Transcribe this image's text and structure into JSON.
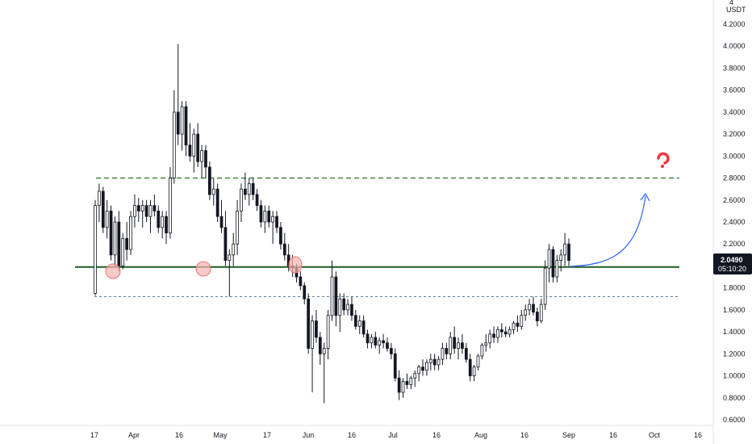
{
  "chart_data": {
    "type": "candlestick",
    "currency": "USDT",
    "header_value": "4",
    "x_tick_labels": [
      "17",
      "Apr",
      "16",
      "May",
      "17",
      "Jun",
      "16",
      "Jul",
      "16",
      "Aug",
      "16",
      "Sep",
      "16",
      "Oct",
      "16"
    ],
    "y_tick_labels": [
      "4.2000",
      "4.0000",
      "3.8000",
      "3.6000",
      "3.4000",
      "3.2000",
      "3.0000",
      "2.8000",
      "2.6000",
      "2.4000",
      "2.2000",
      "2.0000",
      "1.8000",
      "1.6000",
      "1.4000",
      "1.2000",
      "1.0000",
      "0.8000",
      "0.6000"
    ],
    "ylim": [
      0.56,
      4.28
    ],
    "current_price": "2.0490",
    "countdown": "05:10:20",
    "levels": {
      "resistance_dashed": 2.8,
      "support_solid": 1.99,
      "support_dotted": 1.72
    },
    "candles": [
      [
        1.75,
        2.6,
        1.73,
        2.55
      ],
      [
        2.55,
        2.75,
        2.4,
        2.68
      ],
      [
        2.68,
        2.72,
        2.3,
        2.35
      ],
      [
        2.35,
        2.6,
        2.25,
        2.5
      ],
      [
        2.5,
        2.55,
        2.05,
        2.1
      ],
      [
        2.1,
        2.45,
        2.0,
        2.4
      ],
      [
        2.4,
        2.5,
        1.95,
        2.0
      ],
      [
        2.0,
        2.3,
        1.97,
        2.25
      ],
      [
        2.25,
        2.4,
        2.05,
        2.15
      ],
      [
        2.15,
        2.5,
        2.1,
        2.45
      ],
      [
        2.45,
        2.65,
        2.35,
        2.55
      ],
      [
        2.55,
        2.62,
        2.4,
        2.5
      ],
      [
        2.5,
        2.6,
        2.35,
        2.55
      ],
      [
        2.55,
        2.6,
        2.4,
        2.45
      ],
      [
        2.45,
        2.6,
        2.3,
        2.55
      ],
      [
        2.55,
        2.65,
        2.45,
        2.5
      ],
      [
        2.5,
        2.55,
        2.3,
        2.35
      ],
      [
        2.35,
        2.5,
        2.25,
        2.45
      ],
      [
        2.45,
        2.5,
        2.2,
        2.3
      ],
      [
        2.3,
        2.9,
        2.25,
        2.8
      ],
      [
        2.8,
        3.6,
        2.75,
        3.4
      ],
      [
        3.4,
        4.02,
        3.1,
        3.2
      ],
      [
        3.2,
        3.5,
        3.05,
        3.45
      ],
      [
        3.45,
        3.5,
        3.0,
        3.1
      ],
      [
        3.1,
        3.3,
        2.95,
        3.0
      ],
      [
        3.0,
        3.25,
        2.85,
        3.2
      ],
      [
        3.2,
        3.3,
        2.9,
        2.95
      ],
      [
        2.95,
        3.1,
        2.8,
        3.05
      ],
      [
        3.05,
        3.1,
        2.8,
        2.9
      ],
      [
        2.9,
        2.95,
        2.6,
        2.65
      ],
      [
        2.65,
        2.8,
        2.55,
        2.7
      ],
      [
        2.7,
        2.75,
        2.4,
        2.45
      ],
      [
        2.45,
        2.6,
        2.3,
        2.35
      ],
      [
        2.35,
        2.5,
        2.0,
        2.05
      ],
      [
        2.05,
        2.15,
        1.72,
        2.1
      ],
      [
        2.1,
        2.3,
        2.0,
        2.2
      ],
      [
        2.2,
        2.6,
        2.1,
        2.5
      ],
      [
        2.5,
        2.75,
        2.4,
        2.7
      ],
      [
        2.7,
        2.85,
        2.6,
        2.65
      ],
      [
        2.65,
        2.8,
        2.55,
        2.75
      ],
      [
        2.75,
        2.8,
        2.6,
        2.65
      ],
      [
        2.65,
        2.7,
        2.5,
        2.55
      ],
      [
        2.55,
        2.6,
        2.35,
        2.4
      ],
      [
        2.4,
        2.55,
        2.3,
        2.5
      ],
      [
        2.5,
        2.55,
        2.35,
        2.4
      ],
      [
        2.4,
        2.5,
        2.2,
        2.45
      ],
      [
        2.45,
        2.5,
        2.3,
        2.35
      ],
      [
        2.35,
        2.4,
        2.15,
        2.2
      ],
      [
        2.2,
        2.3,
        2.05,
        2.1
      ],
      [
        2.1,
        2.2,
        1.95,
        2.0
      ],
      [
        2.0,
        2.1,
        1.9,
        1.98
      ],
      [
        1.98,
        2.02,
        1.85,
        1.9
      ],
      [
        1.9,
        1.95,
        1.78,
        1.82
      ],
      [
        1.82,
        1.85,
        1.65,
        1.7
      ],
      [
        1.7,
        1.75,
        1.2,
        1.25
      ],
      [
        1.25,
        1.55,
        0.85,
        1.5
      ],
      [
        1.5,
        1.6,
        1.3,
        1.35
      ],
      [
        1.35,
        1.4,
        1.1,
        1.2
      ],
      [
        1.2,
        1.3,
        0.75,
        1.25
      ],
      [
        1.25,
        1.6,
        1.15,
        1.55
      ],
      [
        1.55,
        2.05,
        1.5,
        1.9
      ],
      [
        1.9,
        1.95,
        1.45,
        1.55
      ],
      [
        1.55,
        1.75,
        1.4,
        1.7
      ],
      [
        1.7,
        1.75,
        1.55,
        1.6
      ],
      [
        1.6,
        1.7,
        1.55,
        1.65
      ],
      [
        1.65,
        1.72,
        1.5,
        1.55
      ],
      [
        1.55,
        1.6,
        1.42,
        1.45
      ],
      [
        1.45,
        1.55,
        1.38,
        1.5
      ],
      [
        1.5,
        1.55,
        1.35,
        1.38
      ],
      [
        1.38,
        1.42,
        1.25,
        1.3
      ],
      [
        1.3,
        1.38,
        1.25,
        1.35
      ],
      [
        1.35,
        1.4,
        1.25,
        1.28
      ],
      [
        1.28,
        1.35,
        1.2,
        1.32
      ],
      [
        1.32,
        1.38,
        1.25,
        1.3
      ],
      [
        1.3,
        1.35,
        1.22,
        1.25
      ],
      [
        1.25,
        1.3,
        1.15,
        1.2
      ],
      [
        1.2,
        1.25,
        0.95,
        0.98
      ],
      [
        0.98,
        1.05,
        0.78,
        0.85
      ],
      [
        0.85,
        0.98,
        0.8,
        0.95
      ],
      [
        0.95,
        1.02,
        0.88,
        0.92
      ],
      [
        0.92,
        1.0,
        0.88,
        0.98
      ],
      [
        0.98,
        1.05,
        0.9,
        1.02
      ],
      [
        1.02,
        1.1,
        0.95,
        1.08
      ],
      [
        1.08,
        1.15,
        1.0,
        1.05
      ],
      [
        1.05,
        1.15,
        1.0,
        1.12
      ],
      [
        1.12,
        1.2,
        1.05,
        1.15
      ],
      [
        1.15,
        1.2,
        1.05,
        1.1
      ],
      [
        1.1,
        1.18,
        1.05,
        1.15
      ],
      [
        1.15,
        1.3,
        1.1,
        1.25
      ],
      [
        1.25,
        1.3,
        1.15,
        1.2
      ],
      [
        1.2,
        1.4,
        1.15,
        1.35
      ],
      [
        1.35,
        1.45,
        1.2,
        1.25
      ],
      [
        1.25,
        1.35,
        1.15,
        1.3
      ],
      [
        1.3,
        1.38,
        1.2,
        1.25
      ],
      [
        1.25,
        1.3,
        1.12,
        1.15
      ],
      [
        1.15,
        1.2,
        0.95,
        1.0
      ],
      [
        1.0,
        1.1,
        0.95,
        1.08
      ],
      [
        1.08,
        1.2,
        1.05,
        1.18
      ],
      [
        1.18,
        1.3,
        1.15,
        1.28
      ],
      [
        1.28,
        1.38,
        1.22,
        1.3
      ],
      [
        1.3,
        1.42,
        1.25,
        1.38
      ],
      [
        1.38,
        1.45,
        1.3,
        1.35
      ],
      [
        1.35,
        1.45,
        1.3,
        1.42
      ],
      [
        1.42,
        1.48,
        1.35,
        1.4
      ],
      [
        1.4,
        1.45,
        1.35,
        1.38
      ],
      [
        1.38,
        1.45,
        1.35,
        1.42
      ],
      [
        1.42,
        1.5,
        1.38,
        1.48
      ],
      [
        1.48,
        1.55,
        1.4,
        1.45
      ],
      [
        1.45,
        1.6,
        1.42,
        1.55
      ],
      [
        1.55,
        1.65,
        1.5,
        1.6
      ],
      [
        1.6,
        1.7,
        1.55,
        1.65
      ],
      [
        1.65,
        1.72,
        1.55,
        1.58
      ],
      [
        1.58,
        1.62,
        1.45,
        1.5
      ],
      [
        1.5,
        1.7,
        1.48,
        1.65
      ],
      [
        1.65,
        2.05,
        1.6,
        1.98
      ],
      [
        1.98,
        2.2,
        1.85,
        2.15
      ],
      [
        2.15,
        2.18,
        1.85,
        1.9
      ],
      [
        1.9,
        2.1,
        1.85,
        2.05
      ],
      [
        2.05,
        2.15,
        1.95,
        2.1
      ],
      [
        2.1,
        2.3,
        2.0,
        2.2
      ],
      [
        2.2,
        2.25,
        2.0,
        2.05
      ]
    ]
  }
}
